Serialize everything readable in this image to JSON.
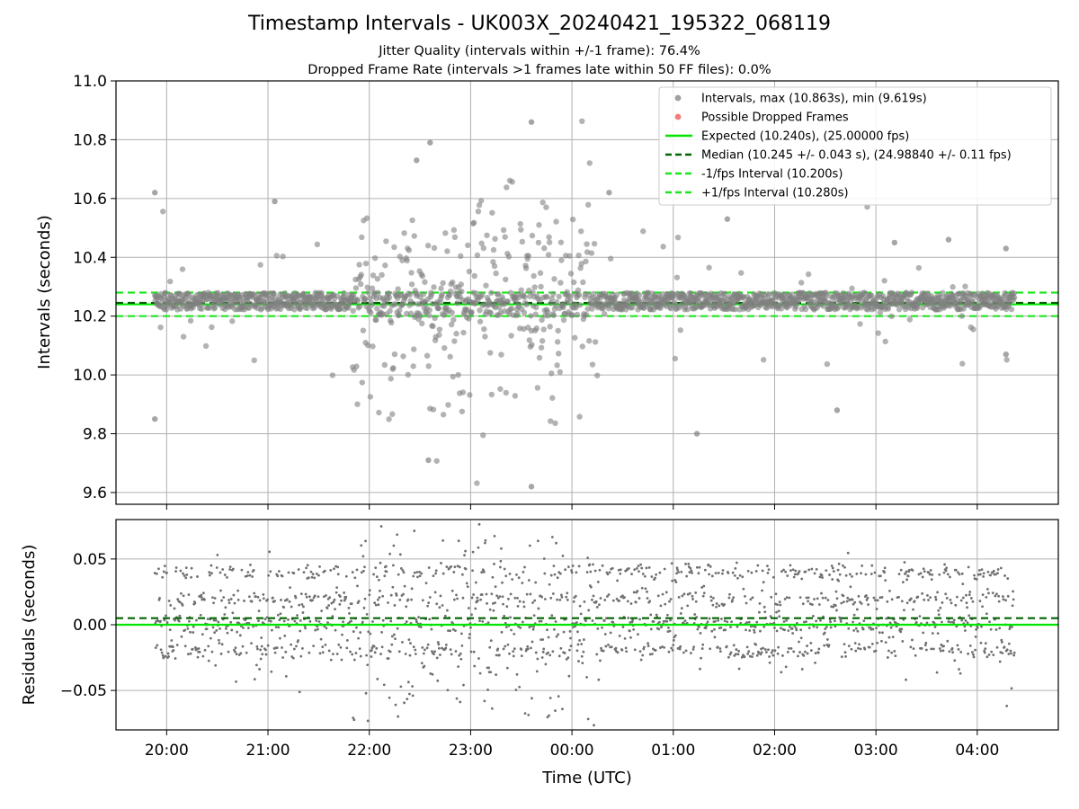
{
  "chart_data": [
    {
      "type": "scatter",
      "panel": "intervals",
      "title": "Timestamp Intervals - UK003X_20240421_195322_068119",
      "subtitle_1": "Jitter Quality (intervals within +/-1 frame): 76.4%",
      "subtitle_2": "Dropped Frame Rate (intervals >1 frames late within 50 FF files): 0.0%",
      "xlabel": "Time (UTC)",
      "ylabel": "Intervals (seconds)",
      "xlim": [
        "2024-04-21 19:30",
        "2024-04-22 04:48"
      ],
      "ylim": [
        9.56,
        11.0
      ],
      "yticks": [
        "9.6",
        "9.8",
        "10.0",
        "10.2",
        "10.4",
        "10.6",
        "10.8",
        "11.0"
      ],
      "grid": true,
      "legend_placement": "top-right",
      "series": [
        {
          "name": "Intervals, max (10.863s), min (9.619s)",
          "kind": "scatter",
          "color": "#808080",
          "max": 10.863,
          "min": 9.619,
          "x_range": [
            "2024-04-21 19:53",
            "2024-04-22 04:22"
          ],
          "central_value": 10.245
        },
        {
          "name": "Possible Dropped Frames",
          "kind": "scatter",
          "color": "#f05050",
          "values": []
        },
        {
          "name": "Expected (10.240s), (25.00000 fps)",
          "kind": "hline",
          "y": 10.24,
          "color": "#00e600",
          "style": "solid"
        },
        {
          "name": "Median (10.245 +/- 0.043 s), (24.98840 +/- 0.11 fps)",
          "kind": "hline",
          "y": 10.245,
          "color": "#006400",
          "style": "dashed"
        },
        {
          "name": "-1/fps Interval (10.200s)",
          "kind": "hline",
          "y": 10.2,
          "color": "#1ee61e",
          "style": "dashed"
        },
        {
          "name": "+1/fps Interval (10.280s)",
          "kind": "hline",
          "y": 10.28,
          "color": "#1ee61e",
          "style": "dashed"
        }
      ],
      "sample_points": [
        {
          "x": "2024-04-21 19:53",
          "y": 10.62
        },
        {
          "x": "2024-04-21 19:53",
          "y": 9.85
        },
        {
          "x": "2024-04-21 21:04",
          "y": 10.59
        },
        {
          "x": "2024-04-21 22:28",
          "y": 10.73
        },
        {
          "x": "2024-04-21 22:36",
          "y": 10.79
        },
        {
          "x": "2024-04-21 22:35",
          "y": 9.71
        },
        {
          "x": "2024-04-21 23:36",
          "y": 10.86
        },
        {
          "x": "2024-04-21 23:36",
          "y": 9.62
        },
        {
          "x": "2024-04-22 00:22",
          "y": 10.62
        },
        {
          "x": "2024-04-22 01:14",
          "y": 9.8
        },
        {
          "x": "2024-04-22 01:32",
          "y": 10.53
        },
        {
          "x": "2024-04-22 02:37",
          "y": 9.88
        },
        {
          "x": "2024-04-22 03:11",
          "y": 10.45
        },
        {
          "x": "2024-04-22 03:43",
          "y": 10.46
        },
        {
          "x": "2024-04-22 04:17",
          "y": 10.43
        },
        {
          "x": "2024-04-22 04:17",
          "y": 10.07
        }
      ]
    },
    {
      "type": "scatter",
      "panel": "residuals",
      "xlabel": "Time (UTC)",
      "ylabel": "Residuals (seconds)",
      "xlim": [
        "2024-04-21 19:30",
        "2024-04-22 04:48"
      ],
      "ylim": [
        -0.08,
        0.08
      ],
      "yticks": [
        "−0.05",
        "0.00",
        "0.05"
      ],
      "xticks": [
        "20:00",
        "21:00",
        "22:00",
        "23:00",
        "00:00",
        "01:00",
        "02:00",
        "03:00",
        "04:00"
      ],
      "grid": true,
      "series": [
        {
          "kind": "scatter",
          "color": "#707070",
          "levels": [
            -0.02,
            0.0,
            0.02,
            0.04
          ],
          "x_range": [
            "2024-04-21 19:53",
            "2024-04-22 04:22"
          ]
        },
        {
          "kind": "hline",
          "y": 0.0,
          "color": "#00e600",
          "style": "solid"
        },
        {
          "kind": "hline",
          "y": 0.005,
          "color": "#006400",
          "style": "dashed"
        }
      ]
    }
  ]
}
